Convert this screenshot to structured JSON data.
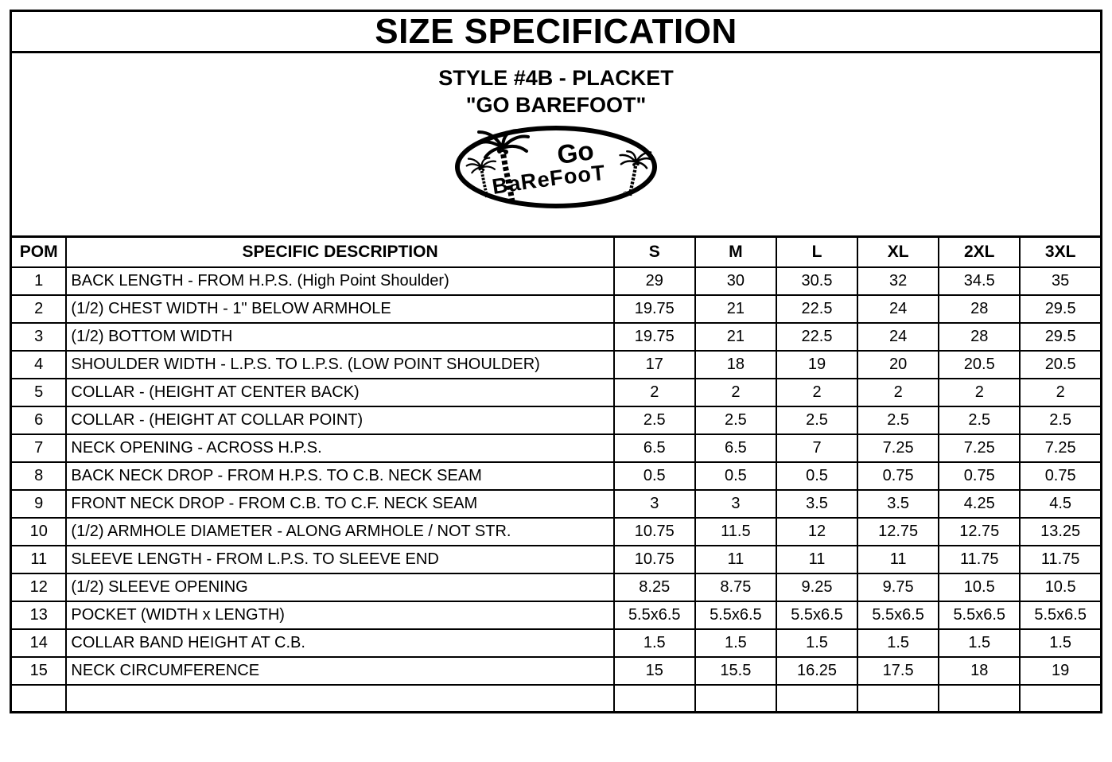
{
  "colors": {
    "ink": "#000000",
    "paper": "#ffffff"
  },
  "document": {
    "title": "SIZE SPECIFICATION",
    "style_line": "STYLE #4B - PLACKET",
    "brand_line": "\"GO BAREFOOT\""
  },
  "logo": {
    "line1": "Go",
    "line2": "BaReFooT",
    "registered": "®"
  },
  "table": {
    "headers": [
      "POM",
      "SPECIFIC DESCRIPTION",
      "S",
      "M",
      "L",
      "XL",
      "2XL",
      "3XL"
    ],
    "rows": [
      {
        "pom": "1",
        "description": "BACK LENGTH - FROM H.P.S. (High Point Shoulder)",
        "values": [
          "29",
          "30",
          "30.5",
          "32",
          "34.5",
          "35"
        ]
      },
      {
        "pom": "2",
        "description": "(1/2) CHEST WIDTH - 1\" BELOW ARMHOLE",
        "values": [
          "19.75",
          "21",
          "22.5",
          "24",
          "28",
          "29.5"
        ]
      },
      {
        "pom": "3",
        "description": "(1/2) BOTTOM WIDTH",
        "values": [
          "19.75",
          "21",
          "22.5",
          "24",
          "28",
          "29.5"
        ]
      },
      {
        "pom": "4",
        "description": "SHOULDER WIDTH - L.P.S. TO L.P.S. (LOW POINT SHOULDER)",
        "values": [
          "17",
          "18",
          "19",
          "20",
          "20.5",
          "20.5"
        ]
      },
      {
        "pom": "5",
        "description": "COLLAR - (HEIGHT AT CENTER BACK)",
        "values": [
          "2",
          "2",
          "2",
          "2",
          "2",
          "2"
        ]
      },
      {
        "pom": "6",
        "description": "COLLAR - (HEIGHT AT COLLAR POINT)",
        "values": [
          "2.5",
          "2.5",
          "2.5",
          "2.5",
          "2.5",
          "2.5"
        ]
      },
      {
        "pom": "7",
        "description": "NECK OPENING - ACROSS H.P.S.",
        "values": [
          "6.5",
          "6.5",
          "7",
          "7.25",
          "7.25",
          "7.25"
        ]
      },
      {
        "pom": "8",
        "description": "BACK NECK DROP - FROM H.P.S. TO C.B. NECK SEAM",
        "values": [
          "0.5",
          "0.5",
          "0.5",
          "0.75",
          "0.75",
          "0.75"
        ]
      },
      {
        "pom": "9",
        "description": "FRONT NECK DROP - FROM C.B. TO C.F. NECK SEAM",
        "values": [
          "3",
          "3",
          "3.5",
          "3.5",
          "4.25",
          "4.5"
        ]
      },
      {
        "pom": "10",
        "description": "(1/2) ARMHOLE DIAMETER - ALONG ARMHOLE / NOT STR.",
        "values": [
          "10.75",
          "11.5",
          "12",
          "12.75",
          "12.75",
          "13.25"
        ]
      },
      {
        "pom": "11",
        "description": "SLEEVE LENGTH - FROM L.P.S. TO SLEEVE END",
        "values": [
          "10.75",
          "11",
          "11",
          "11",
          "11.75",
          "11.75"
        ]
      },
      {
        "pom": "12",
        "description": "(1/2) SLEEVE OPENING",
        "values": [
          "8.25",
          "8.75",
          "9.25",
          "9.75",
          "10.5",
          "10.5"
        ]
      },
      {
        "pom": "13",
        "description": "POCKET (WIDTH x LENGTH)",
        "values": [
          "5.5x6.5",
          "5.5x6.5",
          "5.5x6.5",
          "5.5x6.5",
          "5.5x6.5",
          "5.5x6.5"
        ]
      },
      {
        "pom": "14",
        "description": "COLLAR BAND HEIGHT AT C.B.",
        "values": [
          "1.5",
          "1.5",
          "1.5",
          "1.5",
          "1.5",
          "1.5"
        ]
      },
      {
        "pom": "15",
        "description": "NECK CIRCUMFERENCE",
        "values": [
          "15",
          "15.5",
          "16.25",
          "17.5",
          "18",
          "19"
        ]
      },
      {
        "pom": "",
        "description": "",
        "values": [
          "",
          "",
          "",
          "",
          "",
          ""
        ]
      }
    ]
  }
}
